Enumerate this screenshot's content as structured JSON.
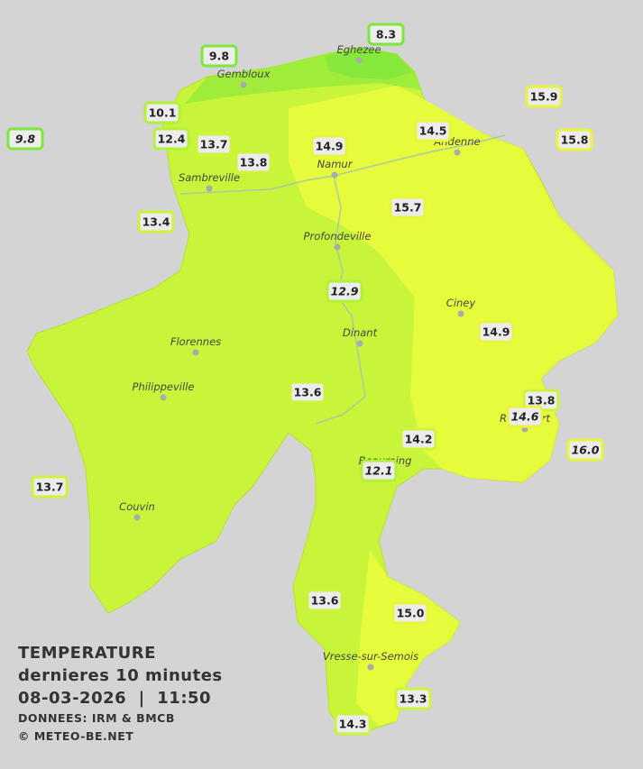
{
  "legend": {
    "title": "TEMPERATURE",
    "subtitle": "dernieres 10 minutes",
    "datetime": "08-03-2026  |  11:50",
    "source": "DONNEES: IRM & BMCB",
    "copyright": "© METEO-BE.NET"
  },
  "towns": [
    "Eghezee",
    "Gembloux",
    "Andenne",
    "Namur",
    "Sambreville",
    "Profondeville",
    "Ciney",
    "Dinant",
    "Florennes",
    "Philippeville",
    "Rochefort",
    "Beauraing",
    "Couvin",
    "Vresse-sur-Semois"
  ],
  "stations": [
    "8.3",
    "9.8",
    "15.9",
    "10.1",
    "14.5",
    "9.8",
    "12.4",
    "13.7",
    "14.9",
    "15.8",
    "13.8",
    "15.7",
    "13.4",
    "12.9",
    "14.9",
    "13.6",
    "13.8",
    "14.6",
    "16.0",
    "14.2",
    "12.1",
    "13.7",
    "13.6",
    "15.0",
    "13.3",
    "14.3"
  ]
}
